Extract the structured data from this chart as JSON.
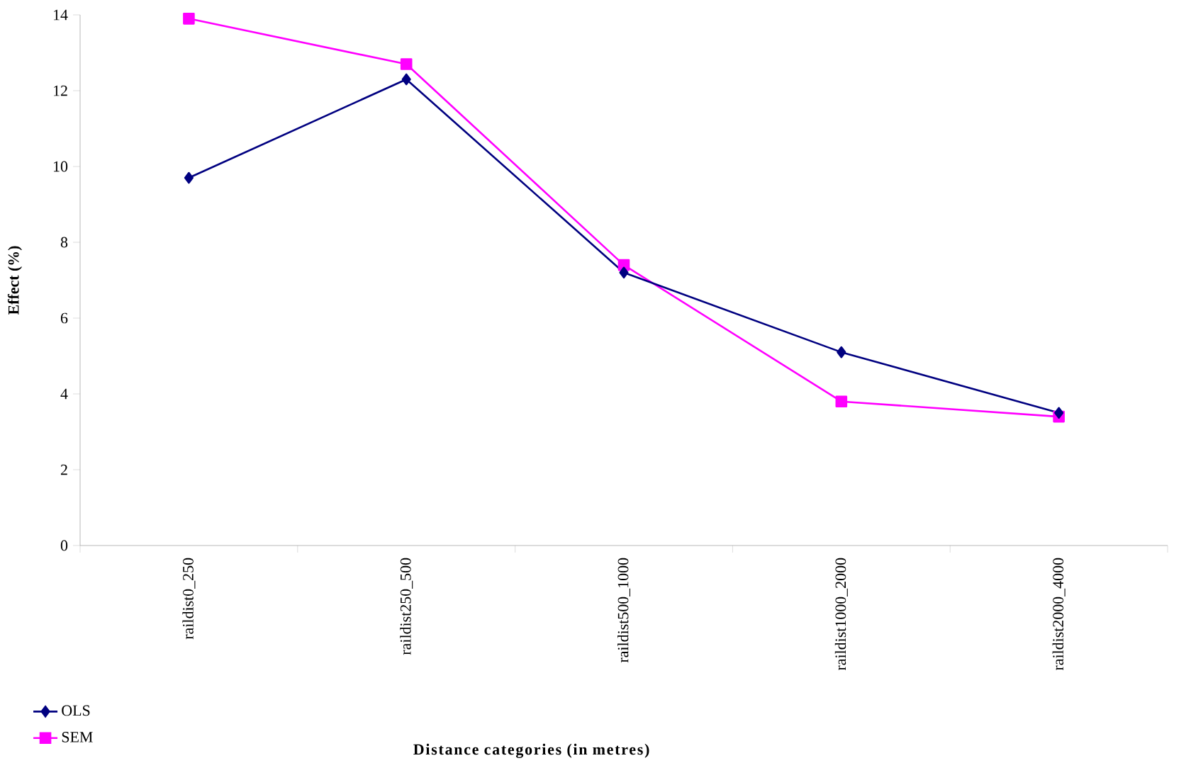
{
  "chart_data": {
    "type": "line",
    "xlabel": "Distance categories (in metres)",
    "ylabel": "Effect (%)",
    "categories": [
      "raildist0_250",
      "raildist250_500",
      "raildist500_1000",
      "raildist1000_2000",
      "raildist2000_4000"
    ],
    "series": [
      {
        "name": "OLS",
        "color": "#000080",
        "marker": "diamond",
        "values": [
          9.7,
          12.3,
          7.2,
          5.1,
          3.5
        ]
      },
      {
        "name": "SEM",
        "color": "#ff00ff",
        "marker": "square",
        "values": [
          13.9,
          12.7,
          7.4,
          3.8,
          3.4
        ]
      }
    ],
    "ylim": [
      0,
      14
    ],
    "yticks": [
      0,
      2,
      4,
      6,
      8,
      10,
      12,
      14
    ],
    "grid": false,
    "legend": "bottom left"
  }
}
